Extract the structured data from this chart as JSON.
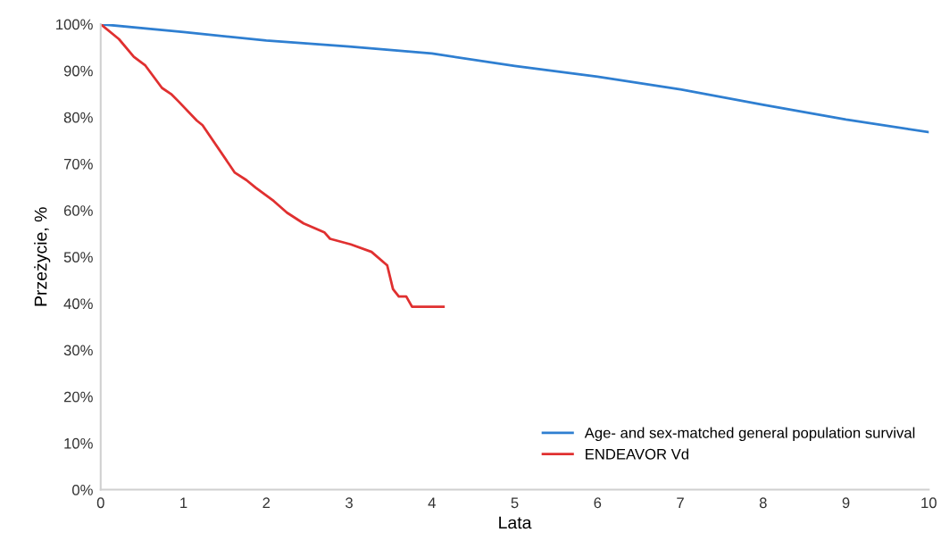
{
  "chart_data": {
    "type": "line",
    "xlabel": "Lata",
    "ylabel": "Przeżycie, %",
    "xlim": [
      0,
      10
    ],
    "xticks": [
      0,
      1,
      2,
      3,
      4,
      5,
      6,
      7,
      8,
      9,
      10
    ],
    "ylim": [
      0,
      100
    ],
    "yticks": [
      {
        "value": 0,
        "label": "0%"
      },
      {
        "value": 10,
        "label": "10%"
      },
      {
        "value": 20,
        "label": "20%"
      },
      {
        "value": 30,
        "label": "30%"
      },
      {
        "value": 40,
        "label": "40%"
      },
      {
        "value": 50,
        "label": "50%"
      },
      {
        "value": 60,
        "label": "60%"
      },
      {
        "value": 70,
        "label": "70%"
      },
      {
        "value": 80,
        "label": "80%"
      },
      {
        "value": 90,
        "label": "90%"
      },
      {
        "value": 100,
        "label": "100%"
      }
    ],
    "grid": false,
    "legend": "bottom right",
    "marker": "none",
    "line_style": "solid",
    "series": [
      {
        "name": "Age- and sex-matched general population survival",
        "color": "#2f7fd1",
        "x": [
          0,
          1,
          2,
          3,
          4,
          5,
          6,
          7,
          8,
          9,
          10
        ],
        "values": [
          100,
          98.3,
          96.5,
          95.2,
          93.7,
          91.0,
          88.7,
          86.0,
          82.7,
          79.5,
          76.8
        ]
      },
      {
        "name": "ENDEAVOR Vd",
        "color": "#e03030",
        "x": [
          0,
          0.22,
          0.4,
          0.54,
          0.74,
          0.85,
          0.94,
          1.16,
          1.23,
          1.62,
          1.76,
          1.87,
          2.09,
          2.25,
          2.45,
          2.7,
          2.77,
          3.02,
          3.27,
          3.46,
          3.53,
          3.6,
          3.69,
          3.76,
          4.14
        ],
        "values": [
          100,
          96.8,
          93.0,
          91.1,
          86.3,
          85.0,
          83.4,
          79.3,
          78.3,
          68.1,
          66.5,
          64.9,
          62.0,
          59.5,
          57.2,
          55.3,
          53.9,
          52.7,
          51.1,
          48.2,
          43.1,
          41.5,
          41.5,
          39.3,
          39.3
        ]
      }
    ]
  }
}
